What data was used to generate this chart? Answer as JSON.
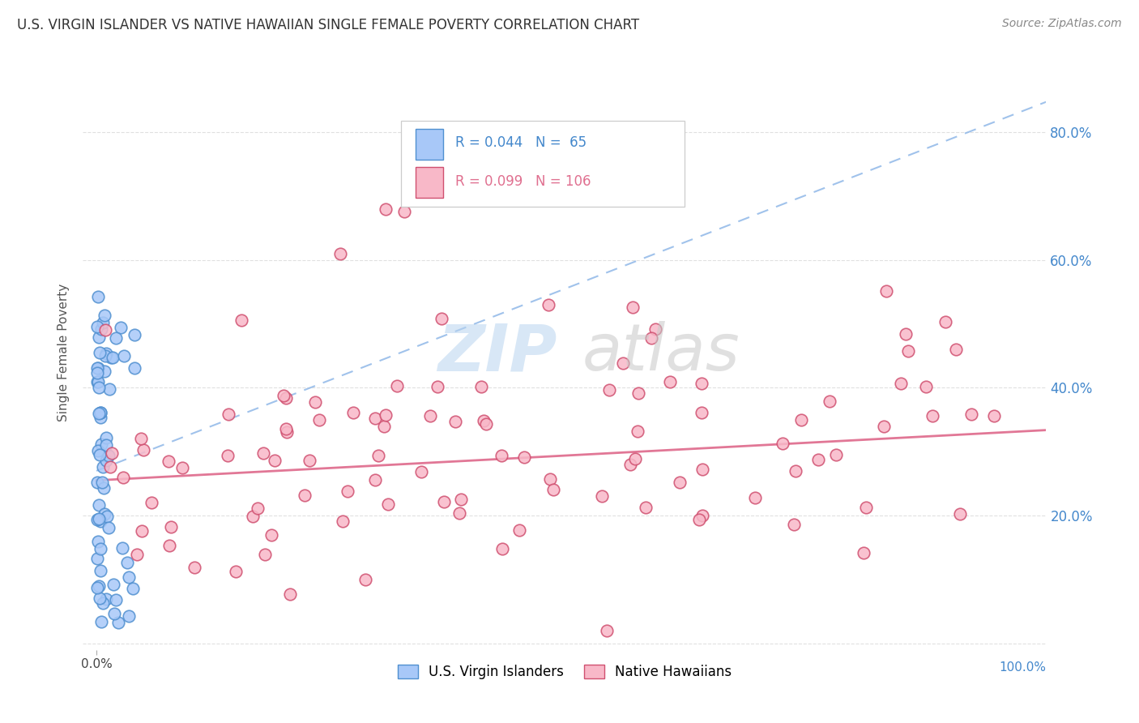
{
  "title": "U.S. VIRGIN ISLANDER VS NATIVE HAWAIIAN SINGLE FEMALE POVERTY CORRELATION CHART",
  "source": "Source: ZipAtlas.com",
  "ylabel": "Single Female Poverty",
  "vi_color": "#a8c8f8",
  "vi_edge_color": "#5090d0",
  "nh_color": "#f8b8c8",
  "nh_edge_color": "#d05070",
  "trendline_vi_color": "#90b8e8",
  "trendline_nh_color": "#e07090",
  "right_axis_color": "#4488cc",
  "background_color": "#ffffff",
  "grid_color": "#dddddd",
  "title_color": "#333333",
  "legend_vi_r": "R = 0.044",
  "legend_vi_n": "N =  65",
  "legend_nh_r": "R = 0.099",
  "legend_nh_n": "N = 106",
  "legend_vi_label": "U.S. Virgin Islanders",
  "legend_nh_label": "Native Hawaiians",
  "watermark_zip": "ZIP",
  "watermark_atlas": "atlas"
}
